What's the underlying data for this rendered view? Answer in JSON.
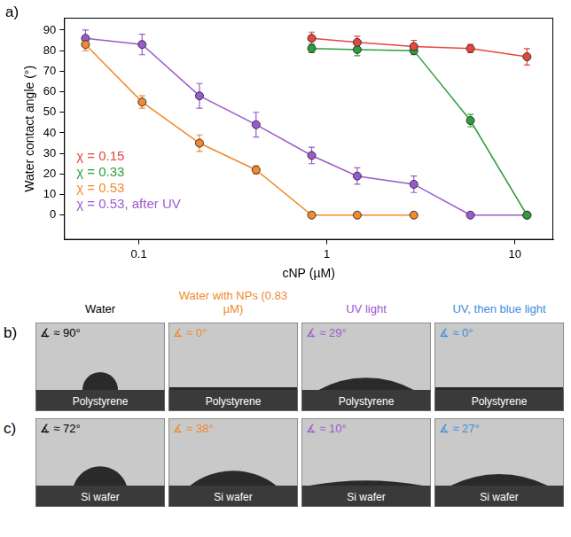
{
  "chart_data": {
    "type": "line",
    "xlabel": "cNP (µM)",
    "ylabel": "Water contact angle (°)",
    "log": "x",
    "grid": false,
    "legend": "lower left",
    "marker": "circle",
    "x": [
      0.052,
      0.104,
      0.21,
      0.42,
      0.83,
      1.45,
      2.9,
      5.8,
      11.6
    ],
    "xlim": [
      0.04,
      16
    ],
    "xticks": [
      0.1,
      1,
      10
    ],
    "ylim": [
      -12,
      96
    ],
    "yticks": [
      0,
      10,
      20,
      30,
      40,
      50,
      60,
      70,
      80,
      90
    ],
    "series": [
      {
        "name": "χ = 0.15",
        "color": "#e5473e",
        "values": [
          null,
          null,
          null,
          null,
          86,
          84,
          82,
          81,
          77
        ],
        "errors": [
          null,
          null,
          null,
          null,
          3,
          3,
          3,
          2,
          4
        ]
      },
      {
        "name": "χ = 0.33",
        "color": "#2e9e3a",
        "values": [
          null,
          null,
          null,
          null,
          81,
          80.5,
          80,
          46,
          0
        ],
        "errors": [
          null,
          null,
          null,
          null,
          2,
          3,
          2,
          3,
          0
        ]
      },
      {
        "name": "χ = 0.53",
        "color": "#f08a2c",
        "values": [
          83,
          55,
          35,
          22,
          0,
          0,
          0,
          null,
          null
        ],
        "errors": [
          3,
          3,
          4,
          2,
          0,
          0,
          0,
          null,
          null
        ]
      },
      {
        "name": "χ = 0.53, after UV",
        "color": "#9b59d0",
        "values": [
          86,
          83,
          58,
          44,
          29,
          19,
          15,
          0,
          0
        ],
        "errors": [
          4,
          5,
          6,
          6,
          4,
          4,
          4,
          0,
          0
        ]
      }
    ]
  },
  "figure": {
    "chart_panel_label": "a)",
    "photo_columns": [
      {
        "title": "Water",
        "color": "#000000"
      },
      {
        "title": "Water with NPs (0.83 µM)",
        "color": "#f08a2c"
      },
      {
        "title": "UV light",
        "color": "#9b59d0"
      },
      {
        "title": "UV, then blue light",
        "color": "#3a8de0"
      }
    ],
    "photo_rows": [
      {
        "label": "b)",
        "cells": [
          {
            "angle": 90,
            "angle_label": "∡ ≈ 90°",
            "substrate": "Polystyrene"
          },
          {
            "angle": 0,
            "angle_label": "∡ ≈ 0°",
            "substrate": "Polystyrene"
          },
          {
            "angle": 29,
            "angle_label": "∡ ≈ 29°",
            "substrate": "Polystyrene"
          },
          {
            "angle": 0,
            "angle_label": "∡ ≈ 0°",
            "substrate": "Polystyrene"
          }
        ]
      },
      {
        "label": "c)",
        "cells": [
          {
            "angle": 72,
            "angle_label": "∡ ≈ 72°",
            "substrate": "Si wafer"
          },
          {
            "angle": 38,
            "angle_label": "∡ ≈ 38°",
            "substrate": "Si wafer"
          },
          {
            "angle": 10,
            "angle_label": "∡ ≈ 10°",
            "substrate": "Si wafer"
          },
          {
            "angle": 27,
            "angle_label": "∡ ≈ 27°",
            "substrate": "Si wafer"
          }
        ]
      }
    ]
  }
}
